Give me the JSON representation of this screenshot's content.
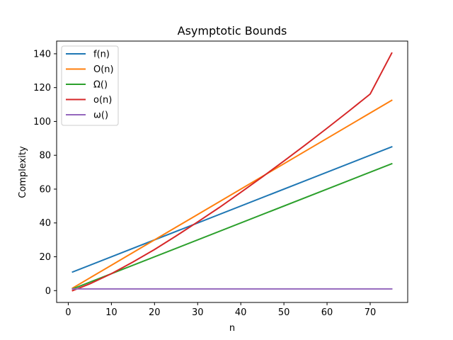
{
  "chart_data": {
    "type": "line",
    "title": "Asymptotic Bounds",
    "xlabel": "n",
    "ylabel": "Complexity",
    "xlim": [
      -2.7,
      78.7
    ],
    "ylim": [
      -7,
      147.5
    ],
    "xticks": [
      0,
      10,
      20,
      30,
      40,
      50,
      60,
      70
    ],
    "yticks": [
      0,
      20,
      40,
      60,
      80,
      100,
      120,
      140
    ],
    "grid": false,
    "legend_position": "top-left",
    "series": [
      {
        "name": "f(n)",
        "color": "#1f77b4",
        "x": [
          1,
          75
        ],
        "y": [
          11,
          85
        ]
      },
      {
        "name": "O(n)",
        "color": "#ff7f0e",
        "x": [
          1,
          75
        ],
        "y": [
          1.5,
          112.5
        ]
      },
      {
        "name": "Ω()",
        "color": "#2ca02c",
        "x": [
          1,
          75
        ],
        "y": [
          1,
          75
        ]
      },
      {
        "name": "o(n)",
        "color": "#d62728",
        "x": [
          1,
          5,
          10,
          15,
          20,
          25,
          30,
          35,
          40,
          45,
          50,
          55,
          60,
          65,
          70,
          75
        ],
        "y": [
          0,
          4.0,
          10.0,
          16.9,
          24.3,
          32.3,
          40.6,
          49.1,
          58.1,
          67.2,
          76.6,
          86.2,
          96.0,
          106.0,
          116.2,
          140.4
        ]
      },
      {
        "name": "ω()",
        "color": "#9467bd",
        "x": [
          1,
          75
        ],
        "y": [
          1,
          1
        ]
      }
    ]
  }
}
